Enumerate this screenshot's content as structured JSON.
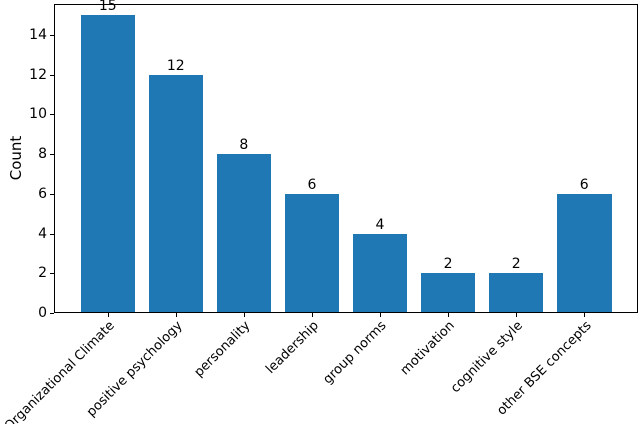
{
  "figure": {
    "background": "#ffffff"
  },
  "chart_data": {
    "type": "bar",
    "title": "",
    "xlabel": "",
    "ylabel": "Count",
    "categories": [
      "Organizational Climate",
      "positive psychology",
      "personality",
      "leadership",
      "group norms",
      "motivation",
      "cognitive style",
      "other BSE concepts"
    ],
    "values": [
      15,
      12,
      8,
      6,
      4,
      2,
      2,
      6
    ],
    "bar_value_labels": [
      "15",
      "12",
      "8",
      "6",
      "4",
      "2",
      "2",
      "6"
    ],
    "yticks": [
      0,
      2,
      4,
      6,
      8,
      10,
      12,
      14
    ],
    "ylim": [
      0,
      15.55
    ],
    "x_tick_rotation_deg": 45,
    "bar_color": "#1f77b4",
    "axis_color": "#000000",
    "text_color": "#000000",
    "grid": false,
    "legend": "none"
  }
}
